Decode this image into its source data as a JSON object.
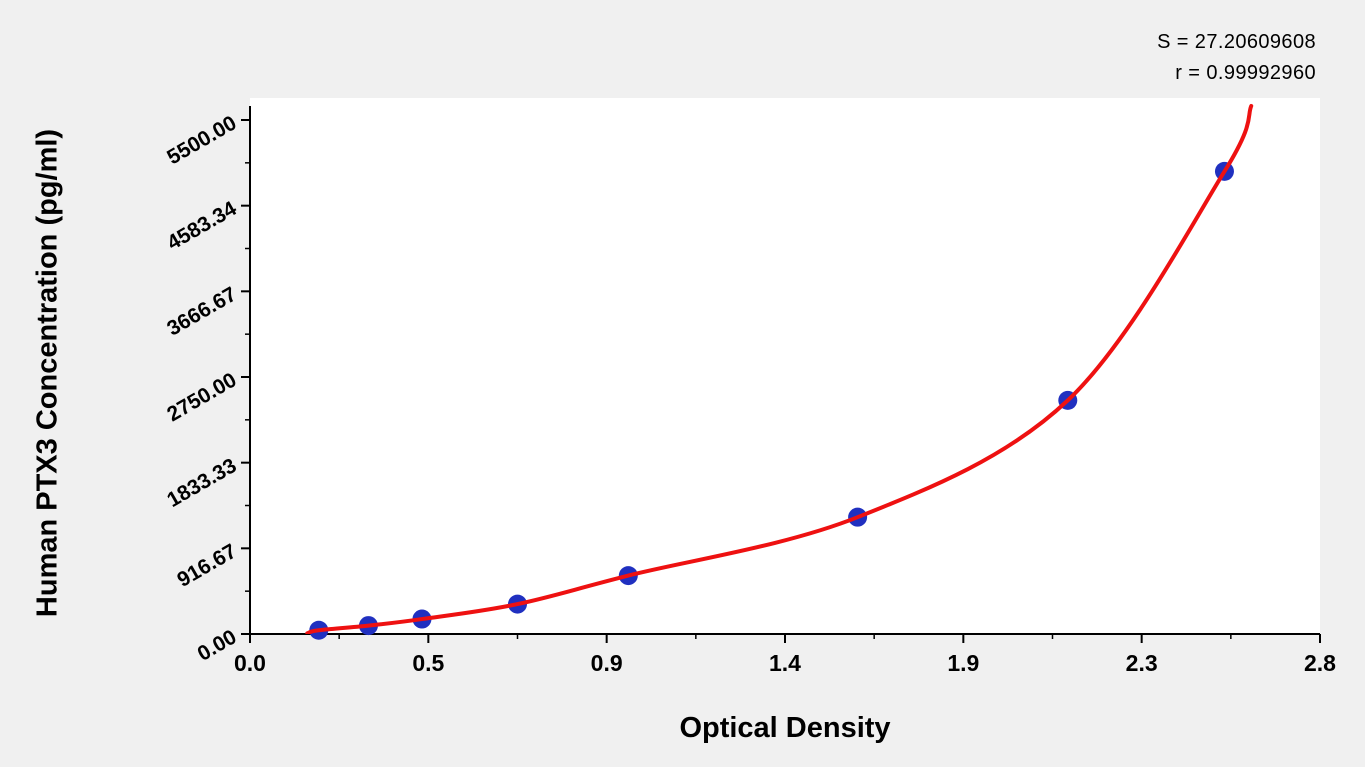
{
  "chart_data": {
    "type": "scatter",
    "title": "",
    "xlabel": "Optical Density",
    "ylabel": "Human PTX3 Concentration (pg/ml)",
    "xlim": [
      0,
      2.8
    ],
    "ylim": [
      0,
      5500
    ],
    "grid": false,
    "legend": "none",
    "x_tick_labels": [
      "0.0",
      "0.5",
      "0.9",
      "1.4",
      "1.9",
      "2.3",
      "2.8"
    ],
    "y_tick_labels": [
      "0.00",
      "916.67",
      "1833.33",
      "2750.00",
      "3666.67",
      "4583.34",
      "5500.00"
    ],
    "series": [
      {
        "name": "standard-points",
        "type": "scatter",
        "x_optical_density": [
          0.18,
          0.31,
          0.45,
          0.7,
          0.99,
          1.59,
          2.14,
          2.55
        ],
        "y_concentration_pg_ml": [
          40,
          90,
          160,
          320,
          625,
          1250,
          2500,
          4950
        ],
        "marker_color": "#2030c0"
      },
      {
        "name": "fitted-curve",
        "type": "line",
        "color": "#ee1111",
        "anchors_x": [
          0.15,
          0.18,
          0.31,
          0.45,
          0.7,
          0.99,
          1.59,
          2.14,
          2.55,
          2.62
        ],
        "anchors_y": [
          8,
          40,
          90,
          160,
          320,
          625,
          1250,
          2500,
          4950,
          5650
        ]
      }
    ],
    "annotations": {
      "s": "S = 27.20609608",
      "r": "r = 0.99992960"
    },
    "axis_color": "#000000",
    "plot_background": "#ffffff",
    "page_background": "#f0f0f0"
  }
}
